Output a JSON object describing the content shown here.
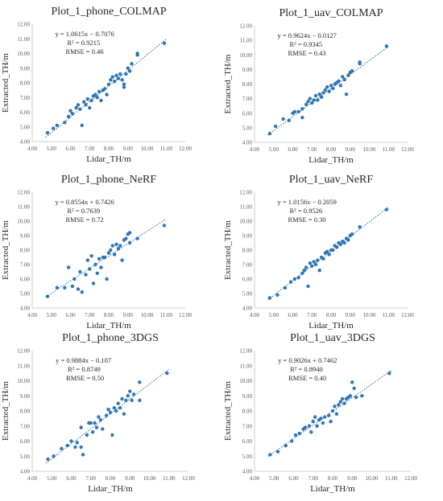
{
  "charts": [
    {
      "type": "scatter",
      "title": "Plot_1_phone_COLMAP",
      "xlabel": "Lidar_TH/m",
      "ylabel": "Extracted_TH/m",
      "xlim": [
        4.0,
        12.0
      ],
      "ylim": [
        4.0,
        12.0
      ],
      "xticks": [
        "4.00",
        "5.00",
        "6.00",
        "7.00",
        "8.00",
        "9.00",
        "10.00",
        "11.00",
        "12.00"
      ],
      "yticks": [
        "4.00",
        "5.00",
        "6.00",
        "7.00",
        "8.00",
        "9.00",
        "10.00",
        "11.00",
        "12.00"
      ],
      "equation": "y = 1.0615x − 0.7076",
      "r2": "R² = 0.9215",
      "rmse": "RMSE = 0.46",
      "trend": {
        "slope": 1.0615,
        "intercept": -0.7076,
        "x_range": [
          4.7,
          11.0
        ]
      },
      "points": [
        [
          4.8,
          4.6
        ],
        [
          5.1,
          4.9
        ],
        [
          5.3,
          5.1
        ],
        [
          5.7,
          5.3
        ],
        [
          5.9,
          5.7
        ],
        [
          6.0,
          6.1
        ],
        [
          6.1,
          5.9
        ],
        [
          6.3,
          6.3
        ],
        [
          6.4,
          6.5
        ],
        [
          6.5,
          6.2
        ],
        [
          6.6,
          5.1
        ],
        [
          6.7,
          6.7
        ],
        [
          6.8,
          6.5
        ],
        [
          6.9,
          6.9
        ],
        [
          7.0,
          6.3
        ],
        [
          7.1,
          6.8
        ],
        [
          7.2,
          7.1
        ],
        [
          7.3,
          7.2
        ],
        [
          7.4,
          7.0
        ],
        [
          7.5,
          7.4
        ],
        [
          7.6,
          6.8
        ],
        [
          7.7,
          7.5
        ],
        [
          7.8,
          7.6
        ],
        [
          7.9,
          7.2
        ],
        [
          8.0,
          7.9
        ],
        [
          8.1,
          8.2
        ],
        [
          8.2,
          8.4
        ],
        [
          8.3,
          8.1
        ],
        [
          8.4,
          8.5
        ],
        [
          8.5,
          8.3
        ],
        [
          8.6,
          8.6
        ],
        [
          8.7,
          8.2
        ],
        [
          8.8,
          7.7
        ],
        [
          8.8,
          7.9
        ],
        [
          8.9,
          8.6
        ],
        [
          9.0,
          9.0
        ],
        [
          9.1,
          8.8
        ],
        [
          9.2,
          9.3
        ],
        [
          9.5,
          10.0
        ],
        [
          9.5,
          9.9
        ],
        [
          10.9,
          10.7
        ]
      ]
    },
    {
      "type": "scatter",
      "title": "Plot_1_uav_COLMAP",
      "xlabel": "Lidar_TH/m",
      "ylabel": "Extracted_TH/m",
      "xlim": [
        4.0,
        12.0
      ],
      "ylim": [
        4.0,
        12.0
      ],
      "xticks": [
        "4.00",
        "5.00",
        "6.00",
        "7.00",
        "8.00",
        "9.00",
        "10.00",
        "11.00",
        "12.00"
      ],
      "yticks": [
        "4.00",
        "5.00",
        "6.00",
        "7.00",
        "8.00",
        "9.00",
        "10.00",
        "11.00",
        "12.00"
      ],
      "equation": "y = 0.9624x − 0.0127",
      "r2": "R² = 0.9345",
      "rmse": "RMSE = 0.43",
      "trend": {
        "slope": 0.9624,
        "intercept": -0.0127,
        "x_range": [
          4.7,
          11.0
        ]
      },
      "points": [
        [
          4.8,
          4.6
        ],
        [
          5.1,
          5.1
        ],
        [
          5.5,
          5.6
        ],
        [
          5.8,
          5.5
        ],
        [
          6.0,
          6.0
        ],
        [
          6.1,
          6.1
        ],
        [
          6.3,
          6.1
        ],
        [
          6.5,
          5.7
        ],
        [
          6.5,
          6.3
        ],
        [
          6.7,
          6.6
        ],
        [
          6.8,
          6.8
        ],
        [
          6.9,
          7.0
        ],
        [
          7.0,
          6.7
        ],
        [
          7.1,
          6.9
        ],
        [
          7.2,
          7.2
        ],
        [
          7.3,
          6.9
        ],
        [
          7.4,
          7.3
        ],
        [
          7.5,
          7.1
        ],
        [
          7.6,
          7.4
        ],
        [
          7.7,
          7.6
        ],
        [
          7.8,
          7.8
        ],
        [
          7.9,
          7.5
        ],
        [
          8.0,
          7.9
        ],
        [
          8.1,
          7.7
        ],
        [
          8.2,
          8.0
        ],
        [
          8.3,
          8.1
        ],
        [
          8.4,
          8.2
        ],
        [
          8.5,
          7.9
        ],
        [
          8.6,
          8.5
        ],
        [
          8.7,
          8.3
        ],
        [
          8.8,
          7.3
        ],
        [
          8.9,
          8.6
        ],
        [
          9.0,
          8.8
        ],
        [
          9.1,
          8.9
        ],
        [
          9.5,
          9.4
        ],
        [
          9.5,
          9.5
        ],
        [
          10.9,
          10.6
        ]
      ]
    },
    {
      "type": "scatter",
      "title": "Plot_1_phone_NeRF",
      "xlabel": "Lidar_TH/m",
      "ylabel": "Extracted_TH/m",
      "xlim": [
        4.0,
        12.0
      ],
      "ylim": [
        4.0,
        12.0
      ],
      "xticks": [
        "4.00",
        "5.00",
        "6.00",
        "7.00",
        "8.00",
        "9.00",
        "10.00",
        "11.00",
        "12.00"
      ],
      "yticks": [
        "4.00",
        "5.00",
        "6.00",
        "7.00",
        "8.00",
        "9.00",
        "10.00",
        "11.00",
        "12.00"
      ],
      "equation": "y = 0.8554x + 0.7426",
      "r2": "R² = 0.7639",
      "rmse": "RMSE = 0.72",
      "trend": {
        "slope": 0.8554,
        "intercept": 0.7426,
        "x_range": [
          4.7,
          11.0
        ]
      },
      "points": [
        [
          4.8,
          4.8
        ],
        [
          5.3,
          5.4
        ],
        [
          5.7,
          5.4
        ],
        [
          5.9,
          6.8
        ],
        [
          6.1,
          5.5
        ],
        [
          6.2,
          6.0
        ],
        [
          6.4,
          5.3
        ],
        [
          6.5,
          6.5
        ],
        [
          6.6,
          5.1
        ],
        [
          6.8,
          6.3
        ],
        [
          6.9,
          7.3
        ],
        [
          7.0,
          6.7
        ],
        [
          7.1,
          7.6
        ],
        [
          7.2,
          5.7
        ],
        [
          7.3,
          7.0
        ],
        [
          7.4,
          6.4
        ],
        [
          7.5,
          7.4
        ],
        [
          7.6,
          6.8
        ],
        [
          7.7,
          7.5
        ],
        [
          7.8,
          7.5
        ],
        [
          7.9,
          6.0
        ],
        [
          8.0,
          7.8
        ],
        [
          8.1,
          8.0
        ],
        [
          8.2,
          8.3
        ],
        [
          8.3,
          7.7
        ],
        [
          8.4,
          8.4
        ],
        [
          8.5,
          8.1
        ],
        [
          8.6,
          8.3
        ],
        [
          8.7,
          7.3
        ],
        [
          8.8,
          8.7
        ],
        [
          8.9,
          8.8
        ],
        [
          9.0,
          9.1
        ],
        [
          9.1,
          9.2
        ],
        [
          9.1,
          8.5
        ],
        [
          9.5,
          8.8
        ],
        [
          10.9,
          9.7
        ]
      ]
    },
    {
      "type": "scatter",
      "title": "Plot_1_uav_NeRF",
      "xlabel": "Lidar_TH/m",
      "ylabel": "Extracted_TH/m",
      "xlim": [
        4.0,
        12.0
      ],
      "ylim": [
        4.0,
        12.0
      ],
      "xticks": [
        "4.00",
        "5.00",
        "6.00",
        "7.00",
        "8.00",
        "9.00",
        "10.00",
        "11.00",
        "12.00"
      ],
      "yticks": [
        "4.00",
        "5.00",
        "6.00",
        "7.00",
        "8.00",
        "9.00",
        "10.00",
        "11.00",
        "12.00"
      ],
      "equation": "y = 1.0156x − 0.2059",
      "r2": "R² = 0.9526",
      "rmse": "RMSE = 0.30",
      "trend": {
        "slope": 1.0156,
        "intercept": -0.2059,
        "x_range": [
          4.7,
          11.0
        ]
      },
      "points": [
        [
          4.8,
          4.7
        ],
        [
          5.2,
          4.9
        ],
        [
          5.6,
          5.4
        ],
        [
          5.9,
          5.8
        ],
        [
          6.1,
          6.0
        ],
        [
          6.3,
          6.1
        ],
        [
          6.5,
          6.4
        ],
        [
          6.6,
          6.6
        ],
        [
          6.7,
          6.8
        ],
        [
          6.8,
          5.5
        ],
        [
          6.9,
          7.1
        ],
        [
          7.0,
          6.9
        ],
        [
          7.1,
          7.2
        ],
        [
          7.2,
          7.0
        ],
        [
          7.3,
          7.3
        ],
        [
          7.4,
          6.6
        ],
        [
          7.5,
          7.5
        ],
        [
          7.6,
          7.4
        ],
        [
          7.7,
          7.8
        ],
        [
          7.8,
          7.9
        ],
        [
          7.9,
          7.7
        ],
        [
          8.0,
          8.0
        ],
        [
          8.1,
          8.0
        ],
        [
          8.2,
          8.3
        ],
        [
          8.3,
          8.2
        ],
        [
          8.4,
          8.5
        ],
        [
          8.5,
          8.4
        ],
        [
          8.6,
          8.6
        ],
        [
          8.7,
          8.5
        ],
        [
          8.8,
          8.8
        ],
        [
          8.9,
          8.7
        ],
        [
          9.0,
          9.0
        ],
        [
          9.1,
          9.1
        ],
        [
          9.5,
          9.6
        ],
        [
          10.9,
          10.8
        ]
      ]
    },
    {
      "type": "scatter",
      "title": "Plot_1_phone_3DGS",
      "xlabel": "Lidar_TH/m",
      "ylabel": "Extracted_TH/m",
      "xlim": [
        4.0,
        12.0
      ],
      "ylim": [
        4.0,
        12.0
      ],
      "xticks": [
        "4.00",
        "5.00",
        "6.00",
        "7.00",
        "8.00",
        "9.00",
        "10.00",
        "11.00",
        "12.00"
      ],
      "yticks": [
        "4.00",
        "5.00",
        "6.00",
        "7.00",
        "8.00",
        "9.00",
        "10.00",
        "11.00",
        "12.00"
      ],
      "equation": "y = 0.9884x − 0.107",
      "r2": "R² = 0.8749",
      "rmse": "RMSE = 0.50",
      "trend": {
        "slope": 0.9884,
        "intercept": -0.107,
        "x_range": [
          4.7,
          11.0
        ]
      },
      "points": [
        [
          4.8,
          4.8
        ],
        [
          5.1,
          5.0
        ],
        [
          5.5,
          5.5
        ],
        [
          5.8,
          5.7
        ],
        [
          6.0,
          6.0
        ],
        [
          6.2,
          5.6
        ],
        [
          6.3,
          5.9
        ],
        [
          6.5,
          5.6
        ],
        [
          6.5,
          6.9
        ],
        [
          6.6,
          5.1
        ],
        [
          6.8,
          6.4
        ],
        [
          6.9,
          7.2
        ],
        [
          7.0,
          7.2
        ],
        [
          7.1,
          6.6
        ],
        [
          7.2,
          7.2
        ],
        [
          7.3,
          6.9
        ],
        [
          7.4,
          7.6
        ],
        [
          7.5,
          7.4
        ],
        [
          7.6,
          6.8
        ],
        [
          7.8,
          7.7
        ],
        [
          7.9,
          8.1
        ],
        [
          8.0,
          7.9
        ],
        [
          8.1,
          6.4
        ],
        [
          8.2,
          8.2
        ],
        [
          8.3,
          8.0
        ],
        [
          8.4,
          8.5
        ],
        [
          8.5,
          8.2
        ],
        [
          8.6,
          8.8
        ],
        [
          8.7,
          7.8
        ],
        [
          8.8,
          8.7
        ],
        [
          8.9,
          9.0
        ],
        [
          9.0,
          9.3
        ],
        [
          9.1,
          8.7
        ],
        [
          9.2,
          9.1
        ],
        [
          9.5,
          9.9
        ],
        [
          9.5,
          8.7
        ],
        [
          10.9,
          10.5
        ]
      ]
    },
    {
      "type": "scatter",
      "title": "Plot_1_uav_3DGS",
      "xlabel": "Lidar_TH/m",
      "ylabel": "Extracted_TH/m",
      "xlim": [
        4.0,
        12.0
      ],
      "ylim": [
        4.0,
        12.0
      ],
      "xticks": [
        "4.00",
        "5.00",
        "6.00",
        "7.00",
        "8.00",
        "9.00",
        "10.00",
        "11.00",
        "12.00"
      ],
      "yticks": [
        "4.00",
        "5.00",
        "6.00",
        "7.00",
        "8.00",
        "9.00",
        "10.00",
        "11.00",
        "12.00"
      ],
      "equation": "y = 0.9026x + 0.7462",
      "r2": "R² = 0.8940",
      "rmse": "RMSE = 0.40",
      "trend": {
        "slope": 0.9026,
        "intercept": 0.7462,
        "x_range": [
          4.7,
          11.0
        ]
      },
      "points": [
        [
          4.8,
          5.1
        ],
        [
          5.2,
          5.3
        ],
        [
          5.6,
          5.7
        ],
        [
          5.9,
          6.0
        ],
        [
          6.1,
          6.4
        ],
        [
          6.3,
          6.5
        ],
        [
          6.5,
          6.8
        ],
        [
          6.6,
          6.9
        ],
        [
          6.8,
          7.0
        ],
        [
          6.9,
          6.6
        ],
        [
          7.0,
          7.3
        ],
        [
          7.1,
          7.6
        ],
        [
          7.2,
          7.0
        ],
        [
          7.3,
          7.4
        ],
        [
          7.4,
          7.5
        ],
        [
          7.5,
          7.2
        ],
        [
          7.6,
          7.6
        ],
        [
          7.8,
          7.7
        ],
        [
          7.9,
          7.3
        ],
        [
          8.0,
          8.0
        ],
        [
          8.1,
          8.3
        ],
        [
          8.2,
          7.8
        ],
        [
          8.3,
          8.4
        ],
        [
          8.4,
          8.6
        ],
        [
          8.5,
          8.8
        ],
        [
          8.6,
          8.5
        ],
        [
          8.7,
          8.8
        ],
        [
          8.8,
          8.9
        ],
        [
          8.9,
          9.0
        ],
        [
          9.0,
          9.9
        ],
        [
          9.1,
          9.5
        ],
        [
          9.2,
          8.9
        ],
        [
          9.5,
          9.0
        ],
        [
          10.9,
          10.5
        ]
      ]
    }
  ]
}
